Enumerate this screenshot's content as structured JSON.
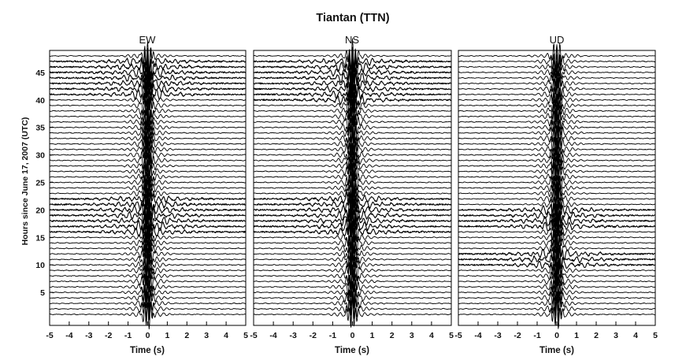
{
  "chart_data": {
    "type": "line",
    "title": "Tiantan (TTN)",
    "ylabel": "Hours since June 17, 2007 (UTC)",
    "yticks": [
      5,
      10,
      15,
      20,
      25,
      30,
      35,
      40,
      45
    ],
    "ylim": [
      -1,
      49
    ],
    "trace_hours": [
      1,
      2,
      3,
      4,
      5,
      6,
      7,
      8,
      9,
      10,
      11,
      12,
      13,
      14,
      15,
      16,
      17,
      18,
      19,
      20,
      21,
      22,
      23,
      24,
      25,
      26,
      27,
      28,
      29,
      30,
      31,
      32,
      33,
      34,
      35,
      36,
      37,
      38,
      39,
      40,
      41,
      42,
      43,
      44,
      45,
      46,
      47,
      48
    ],
    "grid": false,
    "color": "#000000",
    "panels": [
      {
        "title": "EW",
        "xlabel": "Time (s)",
        "xlim": [
          -5,
          5
        ],
        "xticks": [
          "-5",
          "-4",
          "-3",
          "-2",
          "-1",
          "0",
          "1",
          "2",
          "3",
          "4",
          "5"
        ],
        "center_time": 0,
        "noisy_hours": [
          [
            16,
            22
          ],
          [
            41,
            47
          ]
        ]
      },
      {
        "title": "NS",
        "xlabel": "Time (s)",
        "xlim": [
          -5,
          5
        ],
        "xticks": [
          "-5",
          "-4",
          "-3",
          "-2",
          "-1",
          "0",
          "1",
          "2",
          "3",
          "4",
          "5"
        ],
        "center_time": 0,
        "noisy_hours": [
          [
            16,
            22
          ],
          [
            40,
            47
          ]
        ]
      },
      {
        "title": "UD",
        "xlabel": "Time (s)",
        "xlim": [
          -5,
          5
        ],
        "xticks": [
          "-5",
          "-4",
          "-3",
          "-2",
          "-1",
          "0",
          "1",
          "2",
          "3",
          "4",
          "5"
        ],
        "center_time": 0,
        "noisy_hours": [
          [
            10,
            12
          ],
          [
            17,
            20
          ]
        ]
      }
    ]
  }
}
